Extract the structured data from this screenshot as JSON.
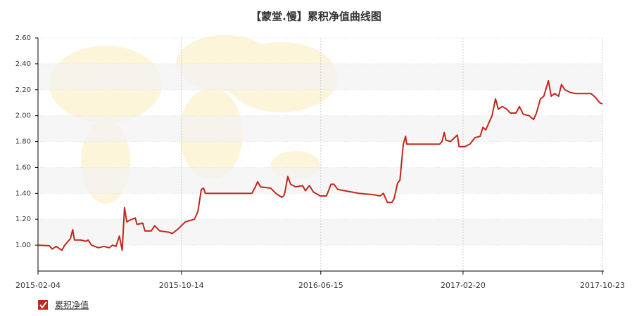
{
  "chart_data": {
    "type": "line",
    "title": "【蒙堂.慢】累积净值曲线图",
    "x": [
      "2015-02-04",
      "2015-02-24",
      "2015-03-01",
      "2015-03-08",
      "2015-03-18",
      "2015-03-23",
      "2015-04-02",
      "2015-04-06",
      "2015-04-09",
      "2015-04-20",
      "2015-04-29",
      "2015-05-03",
      "2015-05-09",
      "2015-05-21",
      "2015-05-31",
      "2015-06-09",
      "2015-06-15",
      "2015-06-21",
      "2015-06-27",
      "2015-07-02",
      "2015-07-06",
      "2015-07-10",
      "2015-07-19",
      "2015-07-25",
      "2015-07-28",
      "2015-08-07",
      "2015-08-11",
      "2015-08-22",
      "2015-08-28",
      "2015-09-06",
      "2015-09-22",
      "2015-09-28",
      "2015-10-07",
      "2015-10-14",
      "2015-10-21",
      "2015-10-29",
      "2015-11-06",
      "2015-11-12",
      "2015-11-18",
      "2015-11-22",
      "2015-11-25",
      "2016-02-15",
      "2016-02-21",
      "2016-02-25",
      "2016-03-01",
      "2016-03-19",
      "2016-03-28",
      "2016-04-07",
      "2016-04-11",
      "2016-04-13",
      "2016-04-18",
      "2016-04-23",
      "2016-05-02",
      "2016-05-14",
      "2016-05-19",
      "2016-05-26",
      "2016-06-02",
      "2016-06-14",
      "2016-06-25",
      "2016-07-03",
      "2016-07-08",
      "2016-07-15",
      "2016-07-27",
      "2016-08-21",
      "2016-09-15",
      "2016-09-27",
      "2016-10-03",
      "2016-10-10",
      "2016-10-18",
      "2016-10-22",
      "2016-10-28",
      "2016-11-01",
      "2016-11-07",
      "2016-11-11",
      "2016-11-13",
      "2017-01-10",
      "2017-01-14",
      "2017-01-18",
      "2017-01-21",
      "2017-01-29",
      "2017-02-05",
      "2017-02-10",
      "2017-02-13",
      "2017-02-23",
      "2017-03-04",
      "2017-03-13",
      "2017-03-22",
      "2017-03-27",
      "2017-04-01",
      "2017-04-07",
      "2017-04-12",
      "2017-04-18",
      "2017-04-23",
      "2017-04-30",
      "2017-05-08",
      "2017-05-14",
      "2017-05-24",
      "2017-05-30",
      "2017-06-06",
      "2017-06-16",
      "2017-06-24",
      "2017-06-29",
      "2017-07-06",
      "2017-07-12",
      "2017-07-20",
      "2017-07-25",
      "2017-07-31",
      "2017-08-07",
      "2017-08-12",
      "2017-08-18",
      "2017-08-27",
      "2017-09-06",
      "2017-10-03",
      "2017-10-11",
      "2017-10-18",
      "2017-10-23"
    ],
    "series": [
      {
        "name": "累积净值",
        "color": "#c0281c",
        "values": [
          1.0,
          0.995,
          0.97,
          0.99,
          0.96,
          1.0,
          1.05,
          1.12,
          1.04,
          1.04,
          1.03,
          1.04,
          1.0,
          0.98,
          0.99,
          0.98,
          1.0,
          0.99,
          1.07,
          0.96,
          1.29,
          1.18,
          1.2,
          1.21,
          1.16,
          1.17,
          1.11,
          1.11,
          1.15,
          1.11,
          1.1,
          1.09,
          1.12,
          1.15,
          1.18,
          1.19,
          1.2,
          1.26,
          1.43,
          1.44,
          1.4,
          1.4,
          1.45,
          1.49,
          1.45,
          1.44,
          1.4,
          1.37,
          1.38,
          1.41,
          1.53,
          1.47,
          1.45,
          1.46,
          1.42,
          1.46,
          1.41,
          1.38,
          1.38,
          1.47,
          1.47,
          1.43,
          1.42,
          1.4,
          1.39,
          1.38,
          1.4,
          1.33,
          1.33,
          1.36,
          1.48,
          1.5,
          1.78,
          1.84,
          1.78,
          1.78,
          1.8,
          1.87,
          1.81,
          1.8,
          1.83,
          1.85,
          1.76,
          1.76,
          1.78,
          1.83,
          1.84,
          1.91,
          1.89,
          1.95,
          2.0,
          2.13,
          2.05,
          2.07,
          2.05,
          2.02,
          2.02,
          2.07,
          2.01,
          2.0,
          1.97,
          2.02,
          2.13,
          2.15,
          2.27,
          2.15,
          2.17,
          2.15,
          2.24,
          2.2,
          2.18,
          2.17,
          2.17,
          2.14,
          2.1,
          2.09
        ]
      }
    ],
    "xlim": [
      "2015-02-04",
      "2017-10-23"
    ],
    "xticks": [
      "2015-02-04",
      "2015-10-14",
      "2016-06-15",
      "2017-02-20",
      "2017-10-23"
    ],
    "ylim": [
      0.8,
      2.6
    ],
    "yticks": [
      {
        "value": 1.0,
        "label": "1.00"
      },
      {
        "value": 1.2,
        "label": "1.20"
      },
      {
        "value": 1.4,
        "label": "1.40"
      },
      {
        "value": 1.6,
        "label": "1.60"
      },
      {
        "value": 1.8,
        "label": "1.80"
      },
      {
        "value": 2.0,
        "label": "2.00"
      },
      {
        "value": 2.2,
        "label": "2.20"
      },
      {
        "value": 2.4,
        "label": "2.40"
      },
      {
        "value": 2.6,
        "label": "2.60"
      }
    ],
    "grid": true
  }
}
